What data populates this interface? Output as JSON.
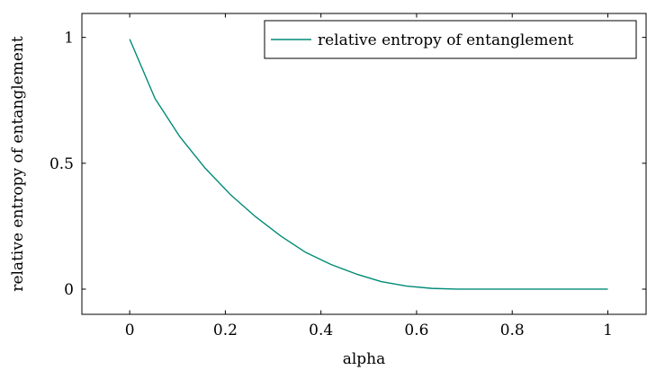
{
  "chart_data": {
    "type": "line",
    "xlabel": "alpha",
    "ylabel": "relative entropy of entanglement",
    "xlim": [
      -0.1,
      1.08
    ],
    "ylim": [
      -0.1,
      1.095
    ],
    "xticks": [
      0,
      0.2,
      0.4,
      0.6,
      0.8,
      1
    ],
    "xtick_labels": [
      "0",
      "0.2",
      "0.4",
      "0.6",
      "0.8",
      "1"
    ],
    "yticks": [
      0,
      0.5,
      1
    ],
    "ytick_labels": [
      "0",
      "0.5",
      "1"
    ],
    "grid": false,
    "legend_position": "top-right",
    "series": [
      {
        "name": "relative entropy of entanglement",
        "color": "#008b77",
        "x": [
          0,
          0.053,
          0.105,
          0.158,
          0.211,
          0.263,
          0.316,
          0.368,
          0.421,
          0.474,
          0.526,
          0.579,
          0.632,
          0.684,
          0.737,
          0.789,
          0.842,
          0.895,
          0.947,
          1.0
        ],
        "y": [
          0.993,
          0.757,
          0.605,
          0.48,
          0.375,
          0.288,
          0.211,
          0.146,
          0.098,
          0.06,
          0.03,
          0.012,
          0.003,
          0,
          0,
          0,
          0,
          0,
          0,
          0
        ]
      }
    ]
  }
}
